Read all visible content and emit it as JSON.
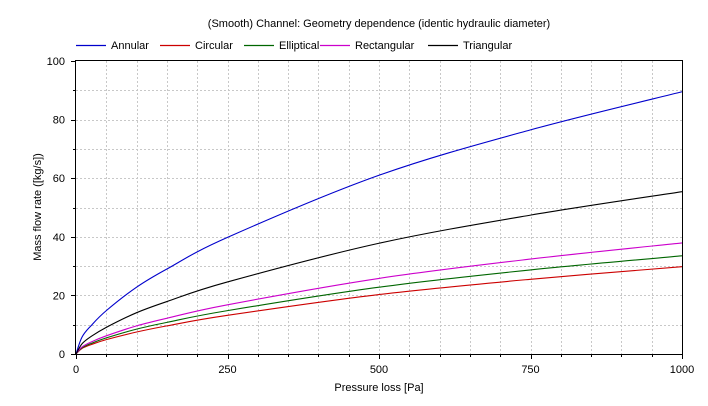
{
  "chart_data": {
    "type": "line",
    "title": "(Smooth) Channel: Geometry dependence (identic hydraulic diameter)",
    "xlabel": "Pressure loss [Pa]",
    "ylabel": "Mass flow rate ([kg/s])",
    "xlim": [
      0,
      1000
    ],
    "ylim": [
      0,
      100
    ],
    "x_ticks": [
      "0",
      "250",
      "500",
      "750",
      "1000"
    ],
    "y_ticks": [
      "0",
      "20",
      "40",
      "60",
      "80",
      "100"
    ],
    "grid": true,
    "legend_position": "top",
    "series": [
      {
        "name": "Annular",
        "color": "#0000cc",
        "x": [
          0,
          10,
          25,
          50,
          100,
          150,
          250,
          500,
          750,
          1000
        ],
        "y": [
          0,
          5.8,
          9.7,
          14.8,
          22.8,
          29.0,
          39.8,
          61.0,
          76.5,
          89.5
        ]
      },
      {
        "name": "Circular",
        "color": "#cc0000",
        "x": [
          0,
          10,
          25,
          50,
          100,
          150,
          250,
          500,
          750,
          1000
        ],
        "y": [
          0,
          1.9,
          3.2,
          4.9,
          7.5,
          9.6,
          13.2,
          20.3,
          25.5,
          29.8
        ]
      },
      {
        "name": "Elliptical",
        "color": "#006600",
        "x": [
          0,
          10,
          25,
          50,
          100,
          150,
          250,
          500,
          750,
          1000
        ],
        "y": [
          0,
          2.1,
          3.6,
          5.5,
          8.5,
          10.8,
          14.8,
          22.8,
          28.7,
          33.5
        ]
      },
      {
        "name": "Rectangular",
        "color": "#cc00cc",
        "x": [
          0,
          10,
          25,
          50,
          100,
          150,
          250,
          500,
          750,
          1000
        ],
        "y": [
          0,
          2.4,
          4.1,
          6.2,
          9.6,
          12.2,
          16.8,
          25.8,
          32.4,
          37.9
        ]
      },
      {
        "name": "Triangular",
        "color": "#000000",
        "x": [
          0,
          10,
          25,
          50,
          100,
          150,
          250,
          500,
          750,
          1000
        ],
        "y": [
          0,
          3.5,
          6.0,
          9.1,
          14.1,
          17.9,
          24.6,
          37.8,
          47.4,
          55.4
        ]
      }
    ]
  }
}
